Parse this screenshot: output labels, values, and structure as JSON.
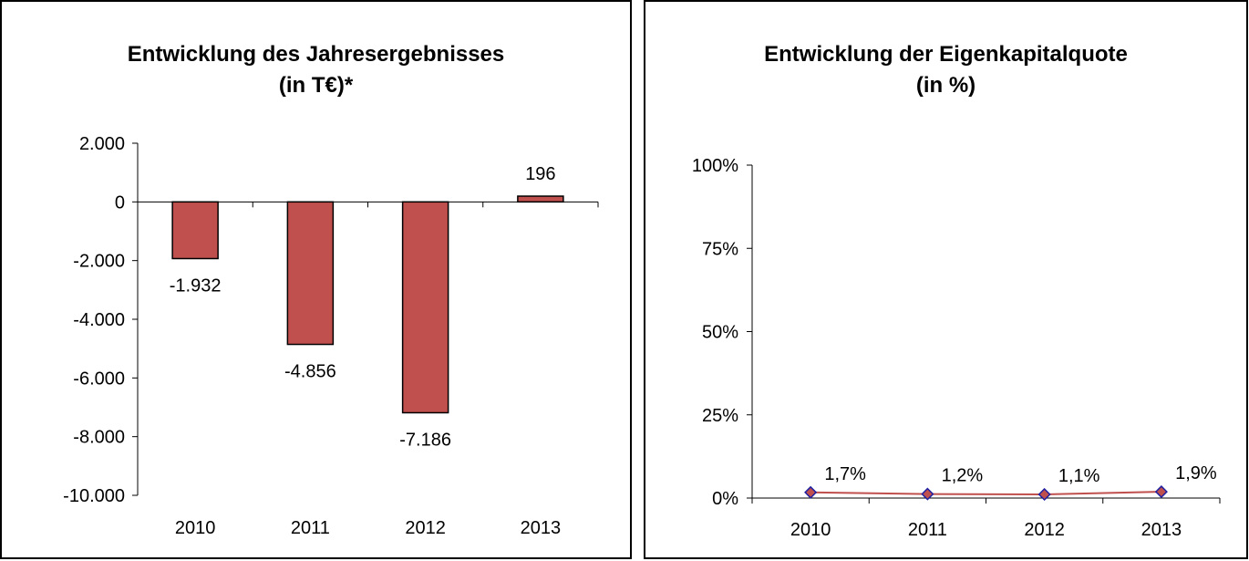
{
  "chart_data": [
    {
      "type": "bar",
      "title": "Entwicklung des Jahresergebnisses",
      "subtitle": "(in T€)*",
      "categories": [
        "2010",
        "2011",
        "2012",
        "2013"
      ],
      "values": [
        -1932,
        -4856,
        -7186,
        196
      ],
      "value_labels": [
        "-1.932",
        "-4.856",
        "-7.186",
        "196"
      ],
      "yticks": [
        2000,
        0,
        -2000,
        -4000,
        -6000,
        -8000,
        -10000
      ],
      "ytick_labels": [
        "2.000",
        "0",
        "-2.000",
        "-4.000",
        "-6.000",
        "-8.000",
        "-10.000"
      ],
      "ylim": [
        -10000,
        2000
      ],
      "bar_color": "#c0504d",
      "grid": false,
      "legend": "none"
    },
    {
      "type": "line",
      "title": "Entwicklung der Eigenkapitalquote",
      "subtitle": "(in %)",
      "categories": [
        "2010",
        "2011",
        "2012",
        "2013"
      ],
      "values": [
        1.7,
        1.2,
        1.1,
        1.9
      ],
      "value_labels": [
        "1,7%",
        "1,2%",
        "1,1%",
        "1,9%"
      ],
      "yticks": [
        100,
        75,
        50,
        25,
        0
      ],
      "ytick_labels": [
        "100%",
        "75%",
        "50%",
        "25%",
        "0%"
      ],
      "ylim": [
        0,
        100
      ],
      "line_color": "#c0504d",
      "marker_color": "#c0504d",
      "marker_edge_color": "#1f1fa0",
      "grid": false,
      "legend": "none"
    }
  ]
}
